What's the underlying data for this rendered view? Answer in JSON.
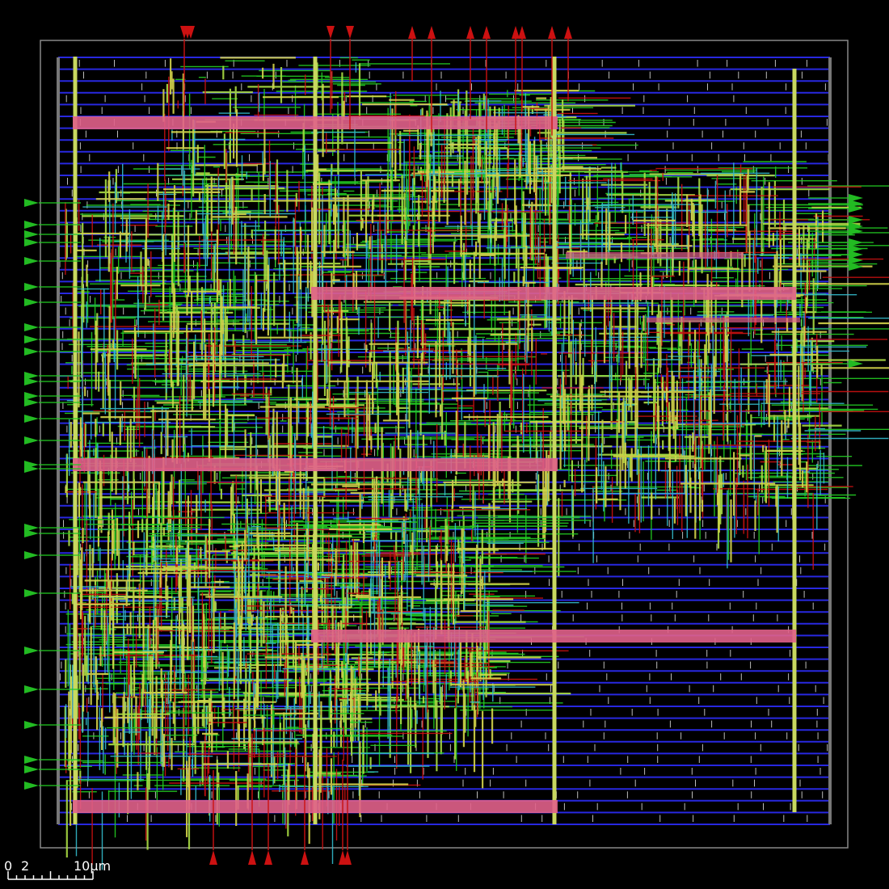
{
  "scale_bar": {
    "labels": [
      "0",
      "2",
      "10µm"
    ]
  }
}
